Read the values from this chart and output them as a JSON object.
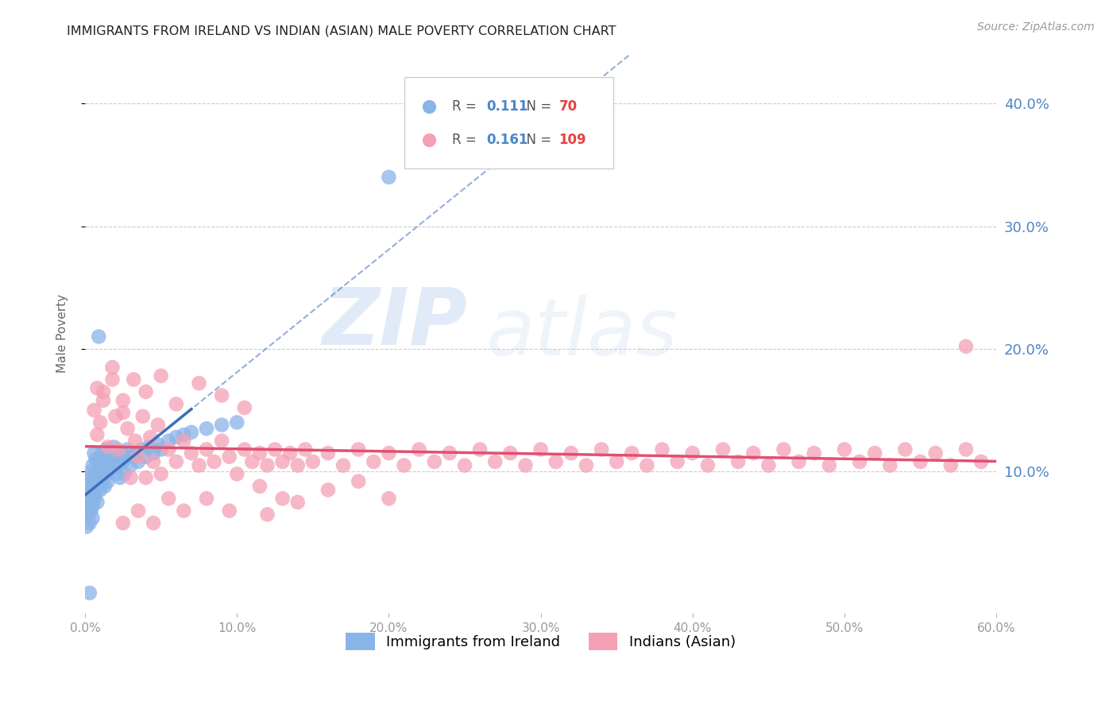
{
  "title": "IMMIGRANTS FROM IRELAND VS INDIAN (ASIAN) MALE POVERTY CORRELATION CHART",
  "source": "Source: ZipAtlas.com",
  "ylabel": "Male Poverty",
  "xlim": [
    0.0,
    0.6
  ],
  "ylim": [
    -0.015,
    0.44
  ],
  "xticks": [
    0.0,
    0.1,
    0.2,
    0.3,
    0.4,
    0.5,
    0.6
  ],
  "xticklabels": [
    "0.0%",
    "10.0%",
    "20.0%",
    "30.0%",
    "40.0%",
    "50.0%",
    "60.0%"
  ],
  "yticks": [
    0.1,
    0.2,
    0.3,
    0.4
  ],
  "right_yticklabels": [
    "10.0%",
    "20.0%",
    "30.0%",
    "40.0%"
  ],
  "ireland_R": 0.111,
  "ireland_N": 70,
  "india_R": 0.161,
  "india_N": 109,
  "ireland_color": "#89b4e8",
  "india_color": "#f4a0b5",
  "ireland_line_color": "#3a6fbb",
  "india_line_color": "#e05070",
  "background_color": "#ffffff",
  "grid_color": "#cccccc",
  "title_color": "#222222",
  "legend_label_ireland": "Immigrants from Ireland",
  "legend_label_india": "Indians (Asian)",
  "ireland_x": [
    0.001,
    0.001,
    0.002,
    0.002,
    0.002,
    0.003,
    0.003,
    0.003,
    0.004,
    0.004,
    0.004,
    0.005,
    0.005,
    0.005,
    0.005,
    0.006,
    0.006,
    0.006,
    0.007,
    0.007,
    0.007,
    0.008,
    0.008,
    0.009,
    0.009,
    0.01,
    0.01,
    0.011,
    0.011,
    0.012,
    0.012,
    0.013,
    0.013,
    0.014,
    0.014,
    0.015,
    0.015,
    0.016,
    0.017,
    0.018,
    0.019,
    0.02,
    0.021,
    0.022,
    0.023,
    0.024,
    0.025,
    0.026,
    0.027,
    0.028,
    0.03,
    0.032,
    0.033,
    0.035,
    0.037,
    0.04,
    0.042,
    0.045,
    0.048,
    0.05,
    0.055,
    0.06,
    0.065,
    0.07,
    0.08,
    0.09,
    0.1,
    0.009,
    0.2,
    0.003
  ],
  "ireland_y": [
    0.07,
    0.055,
    0.08,
    0.065,
    0.09,
    0.075,
    0.058,
    0.095,
    0.068,
    0.085,
    0.1,
    0.072,
    0.088,
    0.062,
    0.105,
    0.078,
    0.092,
    0.115,
    0.082,
    0.098,
    0.11,
    0.088,
    0.075,
    0.095,
    0.108,
    0.085,
    0.1,
    0.09,
    0.115,
    0.095,
    0.105,
    0.088,
    0.112,
    0.098,
    0.118,
    0.092,
    0.108,
    0.102,
    0.115,
    0.105,
    0.12,
    0.098,
    0.112,
    0.105,
    0.095,
    0.115,
    0.108,
    0.098,
    0.112,
    0.118,
    0.105,
    0.112,
    0.115,
    0.108,
    0.118,
    0.112,
    0.12,
    0.115,
    0.122,
    0.118,
    0.125,
    0.128,
    0.13,
    0.132,
    0.135,
    0.138,
    0.14,
    0.21,
    0.34,
    0.001
  ],
  "india_x": [
    0.006,
    0.008,
    0.01,
    0.012,
    0.015,
    0.018,
    0.02,
    0.022,
    0.025,
    0.028,
    0.03,
    0.033,
    0.035,
    0.038,
    0.04,
    0.043,
    0.045,
    0.048,
    0.05,
    0.055,
    0.06,
    0.065,
    0.07,
    0.075,
    0.08,
    0.085,
    0.09,
    0.095,
    0.1,
    0.105,
    0.11,
    0.115,
    0.12,
    0.125,
    0.13,
    0.135,
    0.14,
    0.145,
    0.15,
    0.16,
    0.17,
    0.18,
    0.19,
    0.2,
    0.21,
    0.22,
    0.23,
    0.24,
    0.25,
    0.26,
    0.27,
    0.28,
    0.29,
    0.3,
    0.31,
    0.32,
    0.33,
    0.34,
    0.35,
    0.36,
    0.37,
    0.38,
    0.39,
    0.4,
    0.41,
    0.42,
    0.43,
    0.44,
    0.45,
    0.46,
    0.47,
    0.48,
    0.49,
    0.5,
    0.51,
    0.52,
    0.53,
    0.54,
    0.55,
    0.56,
    0.57,
    0.58,
    0.59,
    0.008,
    0.012,
    0.018,
    0.025,
    0.032,
    0.04,
    0.05,
    0.06,
    0.075,
    0.09,
    0.105,
    0.12,
    0.14,
    0.16,
    0.18,
    0.2,
    0.58,
    0.025,
    0.035,
    0.045,
    0.055,
    0.065,
    0.08,
    0.095,
    0.115,
    0.13
  ],
  "india_y": [
    0.15,
    0.13,
    0.14,
    0.165,
    0.12,
    0.175,
    0.145,
    0.118,
    0.158,
    0.135,
    0.095,
    0.125,
    0.112,
    0.145,
    0.095,
    0.128,
    0.108,
    0.138,
    0.098,
    0.118,
    0.108,
    0.125,
    0.115,
    0.105,
    0.118,
    0.108,
    0.125,
    0.112,
    0.098,
    0.118,
    0.108,
    0.115,
    0.105,
    0.118,
    0.108,
    0.115,
    0.105,
    0.118,
    0.108,
    0.115,
    0.105,
    0.118,
    0.108,
    0.115,
    0.105,
    0.118,
    0.108,
    0.115,
    0.105,
    0.118,
    0.108,
    0.115,
    0.105,
    0.118,
    0.108,
    0.115,
    0.105,
    0.118,
    0.108,
    0.115,
    0.105,
    0.118,
    0.108,
    0.115,
    0.105,
    0.118,
    0.108,
    0.115,
    0.105,
    0.118,
    0.108,
    0.115,
    0.105,
    0.118,
    0.108,
    0.115,
    0.105,
    0.118,
    0.108,
    0.115,
    0.105,
    0.118,
    0.108,
    0.168,
    0.158,
    0.185,
    0.148,
    0.175,
    0.165,
    0.178,
    0.155,
    0.172,
    0.162,
    0.152,
    0.065,
    0.075,
    0.085,
    0.092,
    0.078,
    0.202,
    0.058,
    0.068,
    0.058,
    0.078,
    0.068,
    0.078,
    0.068,
    0.088,
    0.078
  ]
}
